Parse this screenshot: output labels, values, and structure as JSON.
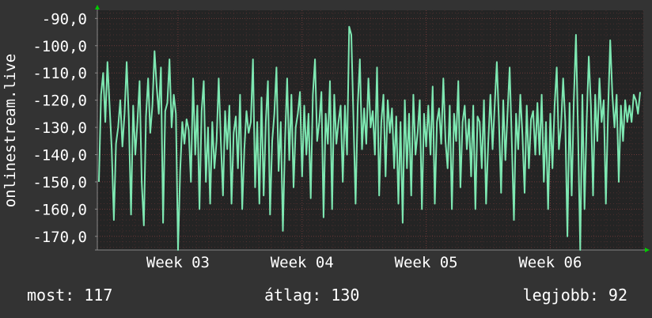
{
  "colors": {
    "background": "#333333",
    "plot_bg": "#242424",
    "line": "#7ee8b2",
    "grid": "#6b3838",
    "arrow": "#00cc00"
  },
  "stats": {
    "now_label": "most:",
    "now_value": "117",
    "avg_label": "átlag:",
    "avg_value": "130",
    "max_label": "legjobb:",
    "max_value": "92"
  },
  "chart_data": {
    "type": "line",
    "ylabel": "onlinestream.live",
    "xlabel": "",
    "title": "",
    "ylim": [
      -175,
      -87
    ],
    "yticks": [
      -90,
      -100,
      -110,
      -120,
      -130,
      -140,
      -150,
      -160,
      -170
    ],
    "ytick_labels": [
      "-90,0",
      "-100,0",
      "-110,0",
      "-120,0",
      "-130,0",
      "-140,0",
      "-150,0",
      "-160,0",
      "-170,0"
    ],
    "xlim": [
      0,
      44
    ],
    "xticks": [
      6.5,
      16.5,
      26.5,
      36.5
    ],
    "xtick_labels": [
      "Week 03",
      "Week 04",
      "Week 05",
      "Week 06"
    ],
    "grid": true,
    "series": [
      {
        "values": [
          -150,
          -118,
          -110,
          -128,
          -106,
          -122,
          -138,
          -164,
          -136,
          -130,
          -120,
          -137,
          -125,
          -106,
          -127,
          -162,
          -122,
          -140,
          -128,
          -113,
          -150,
          -166,
          -126,
          -112,
          -132,
          -122,
          -102,
          -115,
          -125,
          -108,
          -165,
          -124,
          -121,
          -105,
          -130,
          -118,
          -125,
          -175,
          -146,
          -128,
          -136,
          -127,
          -131,
          -150,
          -112,
          -140,
          -122,
          -160,
          -124,
          -113,
          -150,
          -130,
          -158,
          -128,
          -145,
          -135,
          -112,
          -135,
          -155,
          -124,
          -138,
          -122,
          -158,
          -132,
          -126,
          -145,
          -118,
          -160,
          -138,
          -124,
          -132,
          -128,
          -105,
          -152,
          -128,
          -158,
          -119,
          -155,
          -128,
          -113,
          -162,
          -135,
          -125,
          -108,
          -146,
          -128,
          -168,
          -135,
          -112,
          -142,
          -118,
          -152,
          -130,
          -125,
          -117,
          -148,
          -122,
          -140,
          -125,
          -156,
          -118,
          -105,
          -135,
          -128,
          -117,
          -163,
          -125,
          -136,
          -113,
          -160,
          -118,
          -136,
          -128,
          -122,
          -150,
          -122,
          -140,
          -93,
          -96,
          -127,
          -158,
          -122,
          -105,
          -138,
          -123,
          -136,
          -112,
          -130,
          -124,
          -140,
          -108,
          -155,
          -128,
          -118,
          -148,
          -120,
          -132,
          -123,
          -145,
          -126,
          -158,
          -128,
          -165,
          -120,
          -145,
          -125,
          -155,
          -118,
          -140,
          -132,
          -120,
          -160,
          -125,
          -137,
          -122,
          -140,
          -115,
          -158,
          -128,
          -123,
          -136,
          -112,
          -135,
          -145,
          -122,
          -160,
          -125,
          -135,
          -113,
          -152,
          -128,
          -122,
          -138,
          -127,
          -148,
          -122,
          -160,
          -126,
          -128,
          -145,
          -120,
          -158,
          -136,
          -118,
          -138,
          -122,
          -106,
          -128,
          -154,
          -120,
          -142,
          -125,
          -108,
          -135,
          -164,
          -125,
          -138,
          -118,
          -133,
          -154,
          -122,
          -145,
          -127,
          -124,
          -140,
          -121,
          -140,
          -118,
          -150,
          -128,
          -160,
          -125,
          -145,
          -122,
          -108,
          -138,
          -130,
          -112,
          -128,
          -170,
          -121,
          -155,
          -120,
          -96,
          -133,
          -175,
          -118,
          -160,
          -128,
          -104,
          -122,
          -155,
          -118,
          -135,
          -112,
          -128,
          -120,
          -158,
          -125,
          -98,
          -118,
          -130,
          -118,
          -150,
          -122,
          -135,
          -120,
          -128,
          -122,
          -128,
          -118,
          -120,
          -125,
          -117
        ]
      }
    ]
  }
}
